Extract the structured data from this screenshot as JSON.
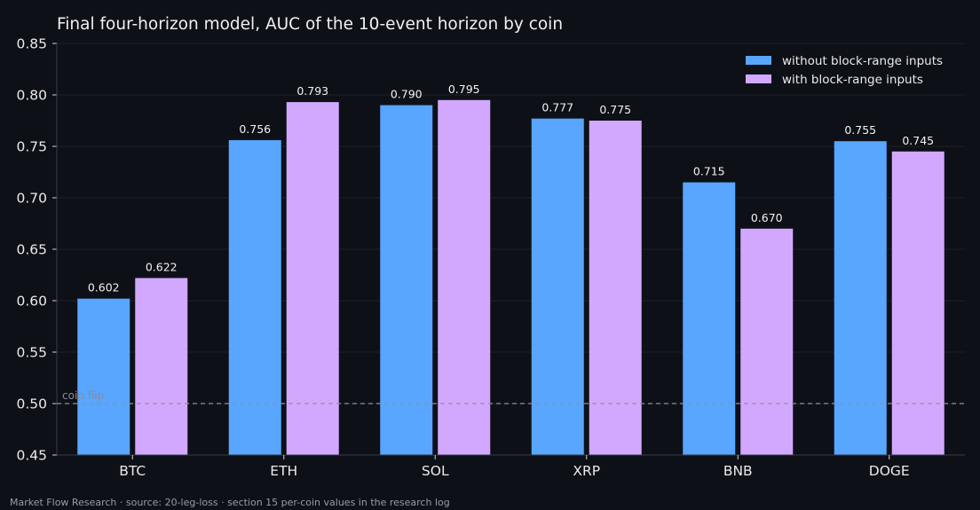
{
  "chart_data": {
    "type": "bar",
    "title": "Final four-horizon model, AUC of the 10-event horizon by coin",
    "categories": [
      "BTC",
      "ETH",
      "SOL",
      "XRP",
      "BNB",
      "DOGE"
    ],
    "series": [
      {
        "name": "without block-range inputs",
        "color": "#58a6ff",
        "values": [
          0.602,
          0.756,
          0.79,
          0.777,
          0.715,
          0.755
        ],
        "labels": [
          "0.602",
          "0.756",
          "0.790",
          "0.777",
          "0.715",
          "0.755"
        ]
      },
      {
        "name": "with block-range inputs",
        "color": "#d2a8ff",
        "values": [
          0.622,
          0.793,
          0.795,
          0.775,
          0.67,
          0.745
        ],
        "labels": [
          "0.622",
          "0.793",
          "0.795",
          "0.775",
          "0.670",
          "0.745"
        ]
      }
    ],
    "ylim": [
      0.45,
      0.85
    ],
    "yticks": [
      "0.45",
      "0.50",
      "0.55",
      "0.60",
      "0.65",
      "0.70",
      "0.75",
      "0.80",
      "0.85"
    ],
    "reference_line": {
      "value": 0.5,
      "label": "coin flip"
    },
    "legend_position": "top-right",
    "grid": true,
    "footer": "Market Flow Research · source: 20-leg-loss · section 15 per-coin values in the research log"
  }
}
